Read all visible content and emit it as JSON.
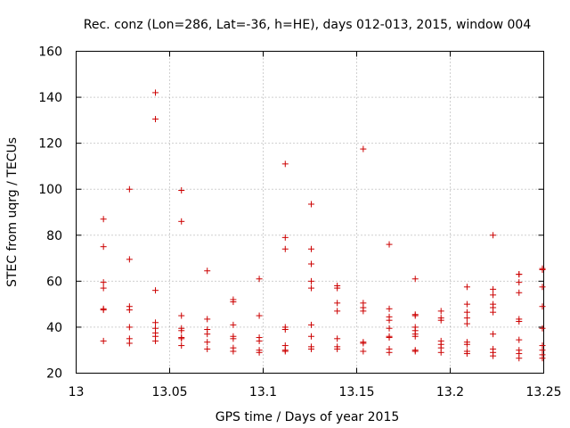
{
  "chart_data": {
    "type": "scatter",
    "title": "Rec. conz (Lon=286, Lat=-36, h=HE), days 012-013, 2015, window 004",
    "xlabel": "GPS time / Days of year 2015",
    "ylabel": "STEC from uqrg / TECUs",
    "xlim": [
      13.0,
      13.25
    ],
    "ylim": [
      20,
      160
    ],
    "xticks": [
      13.0,
      13.05,
      13.1,
      13.15,
      13.2,
      13.25
    ],
    "xtick_labels": [
      "13",
      "13.05",
      "13.1",
      "13.15",
      "13.2",
      "13.25"
    ],
    "yticks": [
      20,
      40,
      60,
      80,
      100,
      120,
      140,
      160
    ],
    "ytick_labels": [
      "20",
      "40",
      "60",
      "80",
      "100",
      "120",
      "140",
      "160"
    ],
    "grid": true,
    "marker": "+",
    "color": "#cc0000",
    "series": [
      {
        "name": "STEC",
        "points": [
          [
            13.0146,
            87
          ],
          [
            13.0146,
            75
          ],
          [
            13.0146,
            59.5
          ],
          [
            13.0146,
            57
          ],
          [
            13.0146,
            48
          ],
          [
            13.0146,
            47.5
          ],
          [
            13.0146,
            34
          ],
          [
            13.0285,
            100
          ],
          [
            13.0285,
            69.5
          ],
          [
            13.0285,
            49
          ],
          [
            13.0285,
            47.5
          ],
          [
            13.0285,
            40
          ],
          [
            13.0285,
            35
          ],
          [
            13.0285,
            33
          ],
          [
            13.0424,
            142
          ],
          [
            13.0424,
            130.5
          ],
          [
            13.0424,
            56
          ],
          [
            13.0424,
            42
          ],
          [
            13.0424,
            39.5
          ],
          [
            13.0424,
            37.5
          ],
          [
            13.0424,
            36
          ],
          [
            13.0424,
            34
          ],
          [
            13.0563,
            99.5
          ],
          [
            13.0563,
            86
          ],
          [
            13.0563,
            45
          ],
          [
            13.0563,
            39.5
          ],
          [
            13.0563,
            38.5
          ],
          [
            13.0563,
            35.5
          ],
          [
            13.0563,
            35
          ],
          [
            13.0563,
            32
          ],
          [
            13.0701,
            64.5
          ],
          [
            13.0701,
            43.5
          ],
          [
            13.0701,
            39
          ],
          [
            13.0701,
            37
          ],
          [
            13.0701,
            33.5
          ],
          [
            13.0701,
            30.5
          ],
          [
            13.084,
            52
          ],
          [
            13.084,
            51
          ],
          [
            13.084,
            41
          ],
          [
            13.084,
            36
          ],
          [
            13.084,
            35
          ],
          [
            13.084,
            31
          ],
          [
            13.084,
            29.5
          ],
          [
            13.0979,
            61
          ],
          [
            13.0979,
            45
          ],
          [
            13.0979,
            35.5
          ],
          [
            13.0979,
            34
          ],
          [
            13.0979,
            30
          ],
          [
            13.0979,
            29
          ],
          [
            13.1118,
            111
          ],
          [
            13.1118,
            79
          ],
          [
            13.1118,
            74
          ],
          [
            13.1118,
            40
          ],
          [
            13.1118,
            39
          ],
          [
            13.1118,
            32
          ],
          [
            13.1118,
            30
          ],
          [
            13.1118,
            29.5
          ],
          [
            13.1257,
            93.5
          ],
          [
            13.1257,
            74
          ],
          [
            13.1257,
            67.5
          ],
          [
            13.1257,
            60
          ],
          [
            13.1257,
            57
          ],
          [
            13.1257,
            41
          ],
          [
            13.1257,
            36
          ],
          [
            13.1257,
            31.5
          ],
          [
            13.1257,
            30.5
          ],
          [
            13.1396,
            58
          ],
          [
            13.1396,
            57
          ],
          [
            13.1396,
            50.5
          ],
          [
            13.1396,
            47
          ],
          [
            13.1396,
            35
          ],
          [
            13.1396,
            31.5
          ],
          [
            13.1396,
            30.5
          ],
          [
            13.1535,
            117.5
          ],
          [
            13.1535,
            50.5
          ],
          [
            13.1535,
            48.5
          ],
          [
            13.1535,
            47
          ],
          [
            13.1535,
            33.5
          ],
          [
            13.1535,
            33
          ],
          [
            13.1535,
            29.5
          ],
          [
            13.1674,
            76
          ],
          [
            13.1674,
            48
          ],
          [
            13.1674,
            44.5
          ],
          [
            13.1674,
            43
          ],
          [
            13.1674,
            39.5
          ],
          [
            13.1674,
            36
          ],
          [
            13.1674,
            35.5
          ],
          [
            13.1674,
            30.5
          ],
          [
            13.1674,
            29
          ],
          [
            13.1813,
            61
          ],
          [
            13.1813,
            45.5
          ],
          [
            13.1813,
            45
          ],
          [
            13.1813,
            40
          ],
          [
            13.1813,
            38.5
          ],
          [
            13.1813,
            37
          ],
          [
            13.1813,
            36
          ],
          [
            13.1813,
            30
          ],
          [
            13.1813,
            29.5
          ],
          [
            13.1951,
            47
          ],
          [
            13.1951,
            44
          ],
          [
            13.1951,
            43
          ],
          [
            13.1951,
            34
          ],
          [
            13.1951,
            32.5
          ],
          [
            13.1951,
            31
          ],
          [
            13.1951,
            29
          ],
          [
            13.209,
            57.5
          ],
          [
            13.209,
            50
          ],
          [
            13.209,
            46.5
          ],
          [
            13.209,
            44
          ],
          [
            13.209,
            41.5
          ],
          [
            13.209,
            33.5
          ],
          [
            13.209,
            32.5
          ],
          [
            13.209,
            29.5
          ],
          [
            13.209,
            28.5
          ],
          [
            13.2229,
            80
          ],
          [
            13.2229,
            56.5
          ],
          [
            13.2229,
            54
          ],
          [
            13.2229,
            50
          ],
          [
            13.2229,
            48.5
          ],
          [
            13.2229,
            46.5
          ],
          [
            13.2229,
            37
          ],
          [
            13.2229,
            30.5
          ],
          [
            13.2229,
            29
          ],
          [
            13.2229,
            27.5
          ],
          [
            13.2368,
            63
          ],
          [
            13.2368,
            63
          ],
          [
            13.2368,
            59.5
          ],
          [
            13.2368,
            55
          ],
          [
            13.2368,
            43.5
          ],
          [
            13.2368,
            42.5
          ],
          [
            13.2368,
            34.5
          ],
          [
            13.2368,
            30
          ],
          [
            13.2368,
            28.5
          ],
          [
            13.2368,
            26.5
          ],
          [
            13.2493,
            65.5
          ],
          [
            13.2493,
            65
          ],
          [
            13.2493,
            57.5
          ],
          [
            13.2493,
            49
          ],
          [
            13.2493,
            39.5
          ],
          [
            13.2493,
            32
          ],
          [
            13.2493,
            30
          ],
          [
            13.2493,
            28
          ],
          [
            13.2493,
            26.5
          ]
        ]
      }
    ]
  }
}
